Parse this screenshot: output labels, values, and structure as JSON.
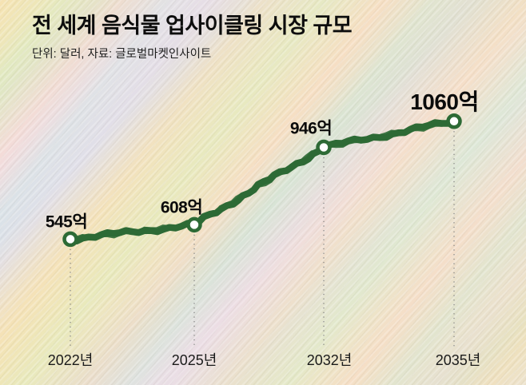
{
  "header": {
    "title": "전 세계 음식물 업사이클링 시장 규모",
    "subtitle": "단위: 달러, 자료: 글로벌마켓인사이트"
  },
  "chart_data": {
    "type": "line",
    "title": "전 세계 음식물 업사이클링 시장 규모",
    "unit_label": "단위: 달러",
    "source_label": "자료: 글로벌마켓인사이트",
    "categories": [
      "2022년",
      "2025년",
      "2032년",
      "2035년"
    ],
    "values": [
      545,
      608,
      946,
      1060
    ],
    "point_labels": [
      "545억",
      "608억",
      "946억",
      "1060억"
    ],
    "ylim": [
      400,
      1150
    ],
    "grid": false,
    "legend": "none",
    "line_color": "#2d6a35",
    "marker_fill": "#ffffff",
    "guide_color": "#838383",
    "label_color": "#0b0b0b",
    "axis_label_color": "#1b1b1b"
  }
}
